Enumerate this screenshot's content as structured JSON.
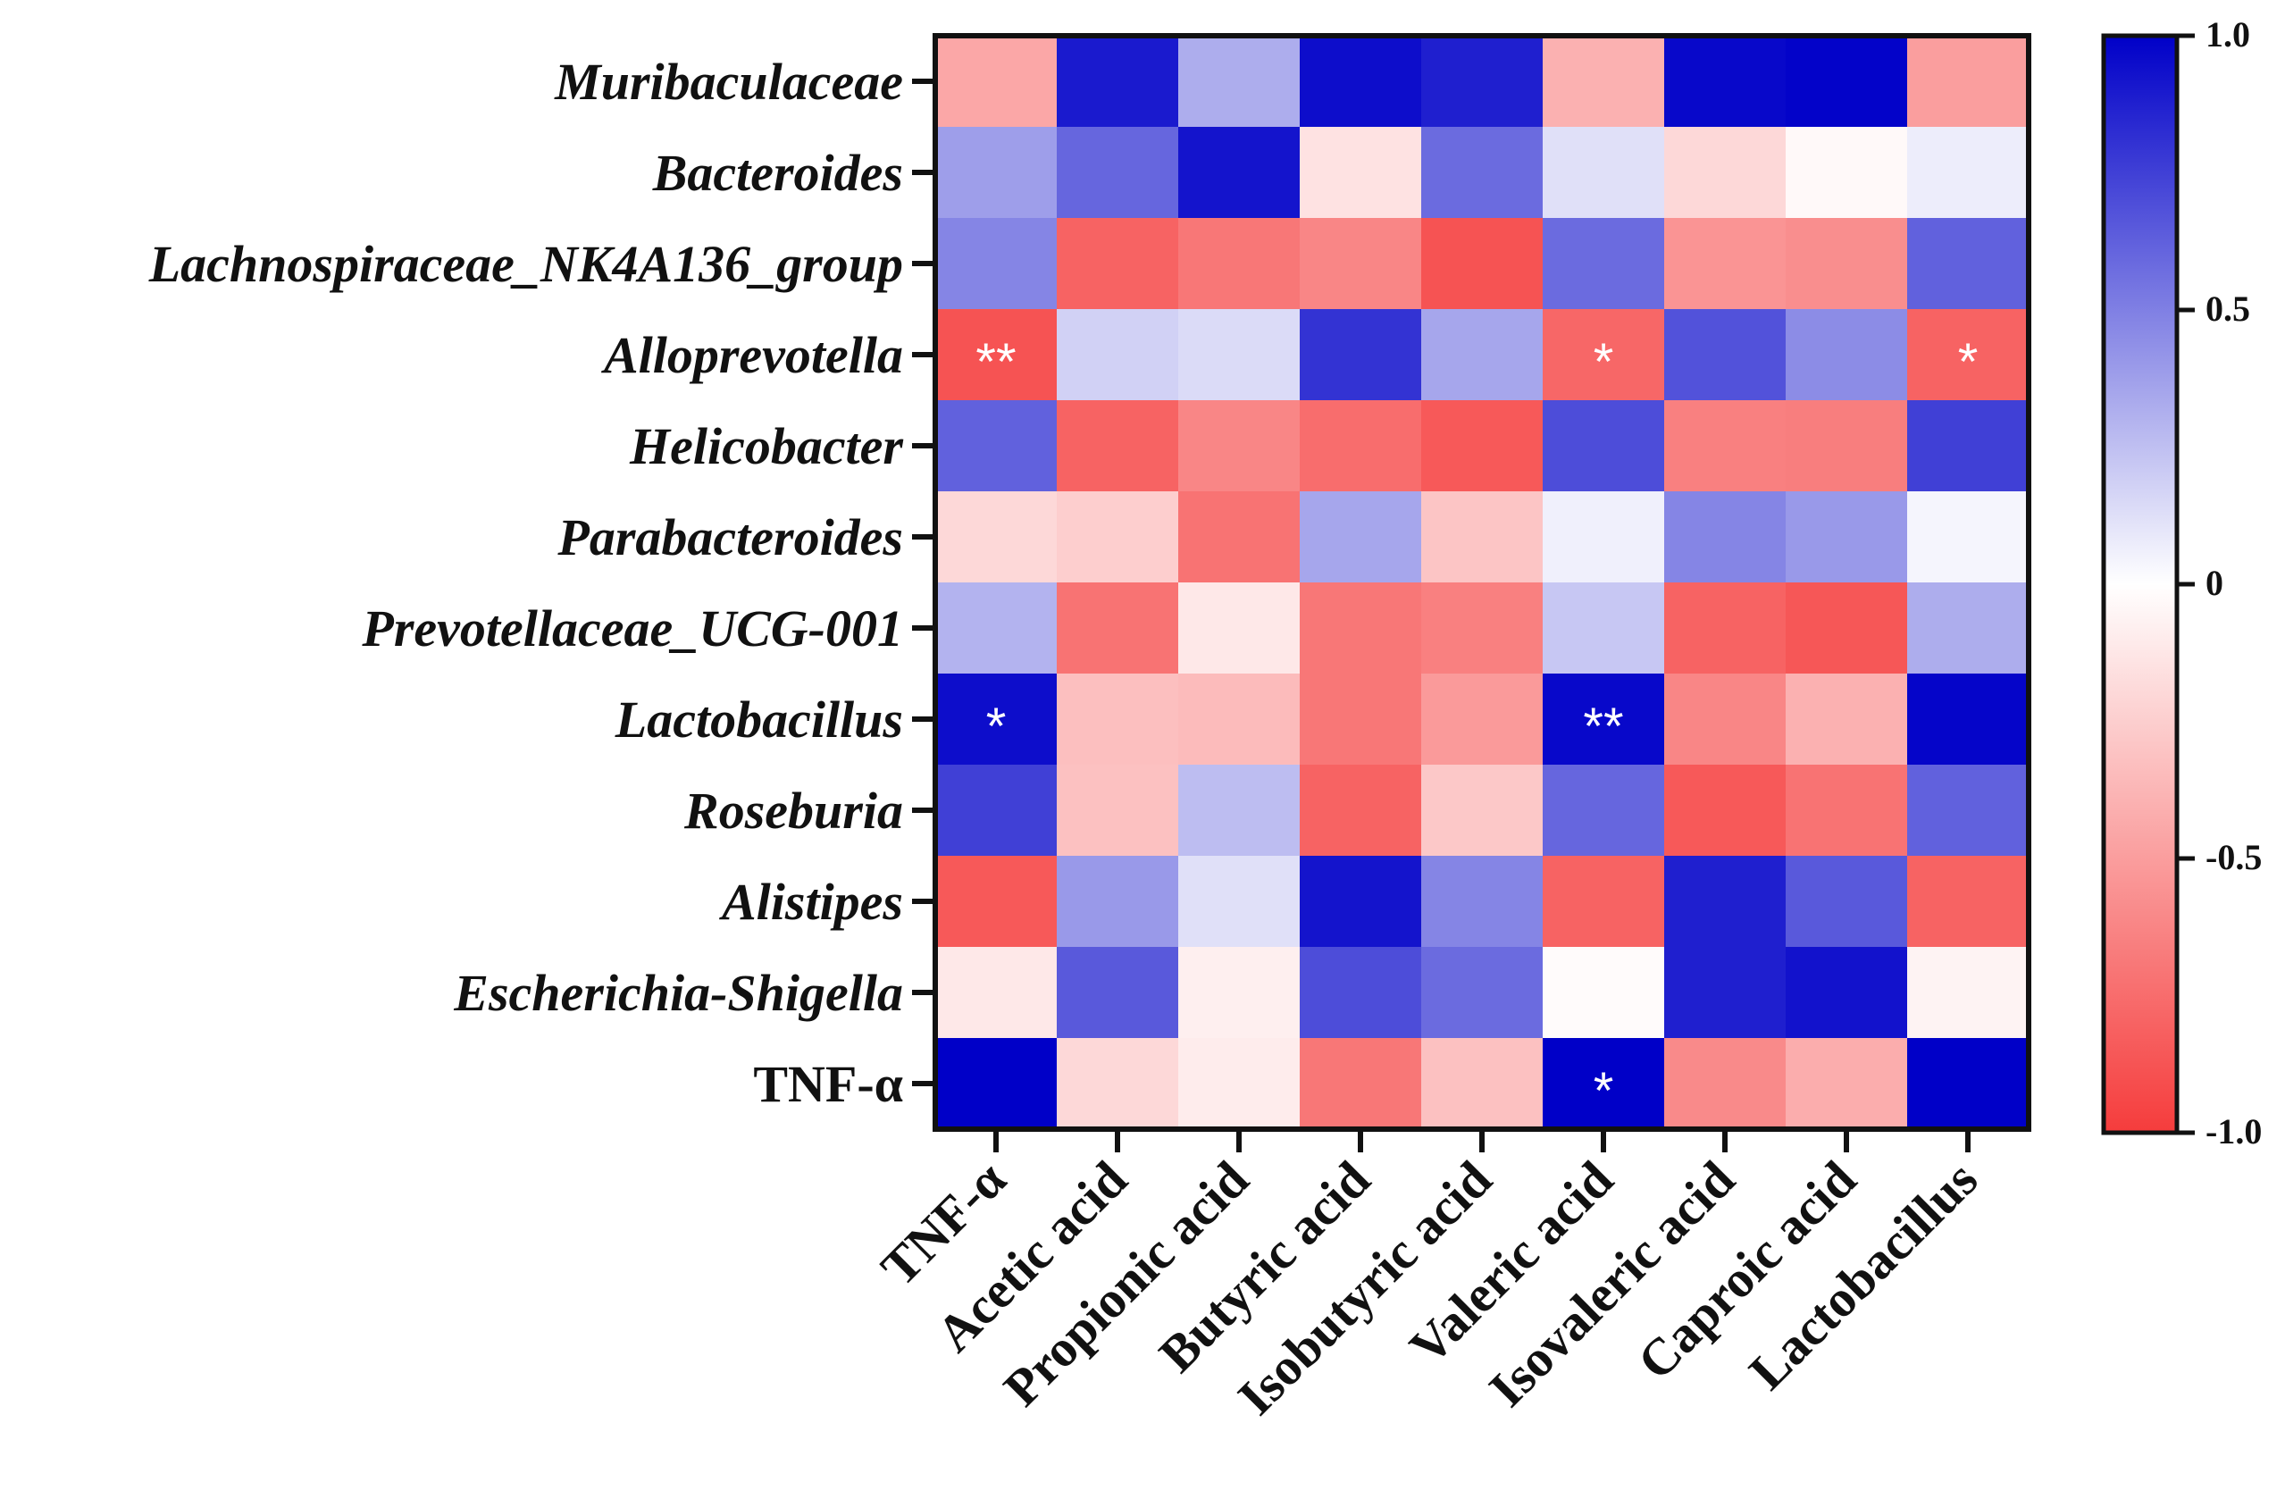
{
  "chart_data": {
    "type": "heatmap",
    "title": "",
    "rows": [
      {
        "label": "Muribaculaceae",
        "italic": true
      },
      {
        "label": "Bacteroides",
        "italic": true
      },
      {
        "label": "Lachnospiraceae_NK4A136_group",
        "italic": true
      },
      {
        "label": "Alloprevotella",
        "italic": true
      },
      {
        "label": "Helicobacter",
        "italic": true
      },
      {
        "label": "Parabacteroides",
        "italic": true
      },
      {
        "label": "Prevotellaceae_UCG-001",
        "italic": true
      },
      {
        "label": "Lactobacillus",
        "italic": true
      },
      {
        "label": "Roseburia",
        "italic": true
      },
      {
        "label": "Alistipes",
        "italic": true
      },
      {
        "label": "Escherichia-Shigella",
        "italic": true
      },
      {
        "label": "TNF-α",
        "italic": false
      }
    ],
    "columns": [
      {
        "label": "TNF-α"
      },
      {
        "label": "Acetic acid"
      },
      {
        "label": "Propionic acid"
      },
      {
        "label": "Butyric acid"
      },
      {
        "label": "Isobutyric acid"
      },
      {
        "label": "Valeric acid"
      },
      {
        "label": "Isovaleric acid"
      },
      {
        "label": "Caproic acid"
      },
      {
        "label": "Lactobacillus"
      }
    ],
    "values": [
      [
        -0.45,
        0.9,
        0.32,
        0.95,
        0.88,
        -0.4,
        0.97,
        0.99,
        -0.5
      ],
      [
        0.38,
        0.6,
        0.92,
        -0.15,
        0.58,
        0.12,
        -0.2,
        -0.03,
        0.07
      ],
      [
        0.48,
        -0.8,
        -0.7,
        -0.62,
        -0.88,
        0.58,
        -0.55,
        -0.58,
        0.62
      ],
      [
        -0.88,
        0.18,
        0.14,
        0.8,
        0.35,
        -0.78,
        0.68,
        0.45,
        -0.8
      ],
      [
        0.62,
        -0.8,
        -0.62,
        -0.75,
        -0.85,
        0.7,
        -0.65,
        -0.66,
        0.75
      ],
      [
        -0.2,
        -0.25,
        -0.72,
        0.35,
        -0.3,
        0.06,
        0.48,
        0.4,
        0.04
      ],
      [
        0.3,
        -0.72,
        -0.12,
        -0.7,
        -0.65,
        0.22,
        -0.8,
        -0.86,
        0.32
      ],
      [
        0.95,
        -0.33,
        -0.35,
        -0.7,
        -0.52,
        0.97,
        -0.62,
        -0.4,
        0.98
      ],
      [
        0.75,
        -0.32,
        0.26,
        -0.8,
        -0.28,
        0.6,
        -0.85,
        -0.72,
        0.62
      ],
      [
        -0.85,
        0.4,
        0.12,
        0.92,
        0.48,
        -0.8,
        0.88,
        0.65,
        -0.8
      ],
      [
        -0.12,
        0.65,
        -0.08,
        0.7,
        0.58,
        -0.02,
        0.88,
        0.93,
        -0.06
      ],
      [
        1.0,
        -0.2,
        -0.1,
        -0.7,
        -0.32,
        1.0,
        -0.6,
        -0.42,
        1.0
      ]
    ],
    "significance": [
      {
        "row": 3,
        "col": 0,
        "mark": "**"
      },
      {
        "row": 3,
        "col": 5,
        "mark": "*"
      },
      {
        "row": 3,
        "col": 8,
        "mark": "*"
      },
      {
        "row": 7,
        "col": 0,
        "mark": "*"
      },
      {
        "row": 7,
        "col": 5,
        "mark": "**"
      },
      {
        "row": 11,
        "col": 5,
        "mark": "*"
      }
    ],
    "colorbar": {
      "min": -1.0,
      "max": 1.0,
      "ticks": [
        {
          "value": 1.0,
          "label": "1.0"
        },
        {
          "value": 0.5,
          "label": "0.5"
        },
        {
          "value": 0.0,
          "label": "0"
        },
        {
          "value": -0.5,
          "label": "-0.5"
        },
        {
          "value": -1.0,
          "label": "-1.0"
        }
      ],
      "max_color": "#0000c8",
      "mid_color": "#ffffff",
      "min_color": "#f53c3c"
    }
  }
}
